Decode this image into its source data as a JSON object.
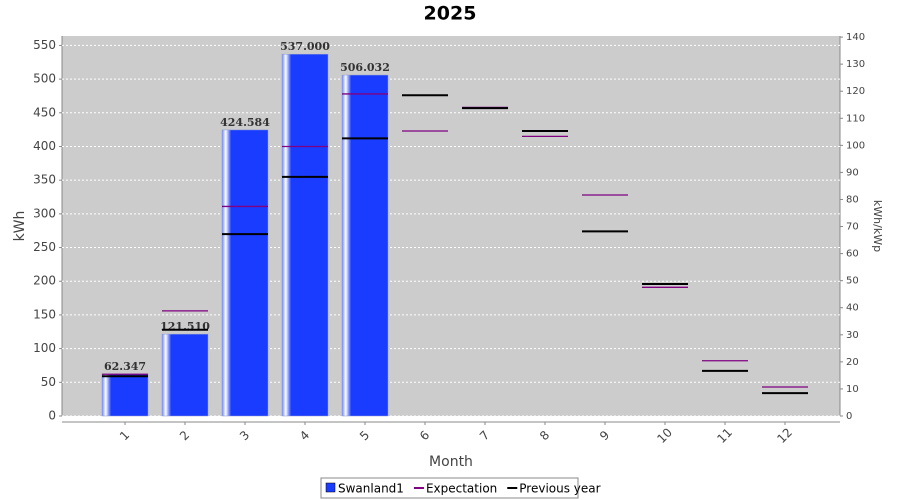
{
  "chart_data": {
    "type": "bar",
    "title": "2025",
    "x_label": "Month",
    "y_label": "kWh",
    "y2_label": "kWh/kWp",
    "categories": [
      "1",
      "2",
      "3",
      "4",
      "5",
      "6",
      "7",
      "8",
      "9",
      "10",
      "11",
      "12"
    ],
    "series": [
      {
        "name": "Swanland1",
        "color": "#1a3cff",
        "style": "bar",
        "values": [
          62.347,
          121.51,
          424.584,
          537.0,
          506.032,
          null,
          null,
          null,
          null,
          null,
          null,
          null
        ],
        "value_labels": [
          "62.347",
          "121.510",
          "424.584",
          "537.000",
          "506.032",
          null,
          null,
          null,
          null,
          null,
          null,
          null
        ]
      },
      {
        "name": "Expectation",
        "color": "#800080",
        "style": "marker",
        "values": [
          62,
          156,
          311,
          400,
          478,
          423,
          458,
          415,
          328,
          191,
          82,
          43
        ]
      },
      {
        "name": "Previous year",
        "color": "#000000",
        "style": "marker",
        "values": [
          59,
          128,
          270,
          355,
          412,
          476,
          457,
          423,
          274,
          196,
          67,
          34
        ]
      }
    ],
    "ylim": [
      0,
      564
    ],
    "yticks": [
      0,
      50,
      100,
      150,
      200,
      250,
      300,
      350,
      400,
      450,
      500,
      550
    ],
    "y2lim": [
      0,
      140.4
    ],
    "y2ticks": [
      0,
      10,
      20,
      30,
      40,
      50,
      60,
      70,
      80,
      90,
      100,
      110,
      120,
      130,
      140
    ],
    "grid": true,
    "legend": "bottom"
  }
}
